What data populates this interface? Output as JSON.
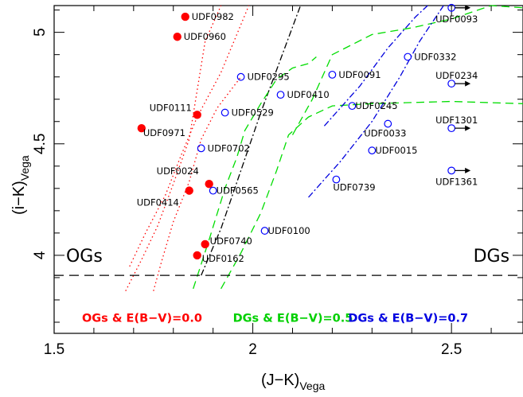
{
  "chart_data": {
    "type": "scatter",
    "xlabel": "(J−K)",
    "xlabel_sub": "Vega",
    "ylabel": "(i−K)",
    "ylabel_sub": "Vega",
    "xlim": [
      1.5,
      2.68
    ],
    "ylim": [
      3.65,
      5.12
    ],
    "x_ticks": [
      {
        "value": 1.5,
        "label": "1.5"
      },
      {
        "value": 2.0,
        "label": "2"
      },
      {
        "value": 2.5,
        "label": "2.5"
      }
    ],
    "y_ticks": [
      {
        "value": 4.0,
        "label": "4"
      },
      {
        "value": 4.5,
        "label": "4.5"
      },
      {
        "value": 5.0,
        "label": "5"
      }
    ],
    "region_labels": [
      {
        "text": "OGs",
        "x": 1.53,
        "y": 4.0
      },
      {
        "text": "DGs",
        "x": 2.555,
        "y": 4.0
      }
    ],
    "hline": {
      "y": 3.91,
      "style": "dashed",
      "color": "#000000"
    },
    "legend": [
      {
        "text": "OGs & E(B−V)=0.0",
        "color": "#ff0000",
        "x": 1.57,
        "y": 3.72
      },
      {
        "text": "DGs & E(B−V)=0.5",
        "color": "#00d000",
        "x": 1.95,
        "y": 3.72
      },
      {
        "text": "DGs & E(B−V)=0.7",
        "color": "#0000e0",
        "x": 2.24,
        "y": 3.72
      }
    ],
    "series": [
      {
        "name": "OGs",
        "marker": "filled-circle",
        "color": "#ff0000",
        "points": [
          {
            "x": 1.83,
            "y": 5.07,
            "label": "UDF0982"
          },
          {
            "x": 1.81,
            "y": 4.98,
            "label": "UDF0960"
          },
          {
            "x": 1.86,
            "y": 4.63,
            "label": "UDF0111"
          },
          {
            "x": 1.72,
            "y": 4.57,
            "label": "UDF0971"
          },
          {
            "x": 1.89,
            "y": 4.32,
            "label": "UDF0024"
          },
          {
            "x": 1.84,
            "y": 4.29,
            "label": "UDF0414"
          },
          {
            "x": 1.88,
            "y": 4.05,
            "label": "UDF0740"
          },
          {
            "x": 1.86,
            "y": 4.0,
            "label": "UDF0162"
          }
        ]
      },
      {
        "name": "DGs",
        "marker": "open-circle",
        "color": "#0000ff",
        "points": [
          {
            "x": 1.97,
            "y": 4.8,
            "label": "UDF0295"
          },
          {
            "x": 2.07,
            "y": 4.72,
            "label": "UDF0410"
          },
          {
            "x": 1.93,
            "y": 4.64,
            "label": "UDF0529"
          },
          {
            "x": 1.87,
            "y": 4.48,
            "label": "UDF0702"
          },
          {
            "x": 1.9,
            "y": 4.29,
            "label": "UDF0565"
          },
          {
            "x": 2.03,
            "y": 4.11,
            "label": "UDF0100"
          },
          {
            "x": 2.2,
            "y": 4.81,
            "label": "UDF0091"
          },
          {
            "x": 2.39,
            "y": 4.89,
            "label": "UDF0332"
          },
          {
            "x": 2.25,
            "y": 4.67,
            "label": "UDF0245"
          },
          {
            "x": 2.34,
            "y": 4.59,
            "label": "UDF0033"
          },
          {
            "x": 2.3,
            "y": 4.47,
            "label": "UDF0015"
          },
          {
            "x": 2.21,
            "y": 4.34,
            "label": "UDF0739"
          },
          {
            "x": 2.5,
            "y": 5.11,
            "label": "UDF0093",
            "arrow": true
          },
          {
            "x": 2.5,
            "y": 4.77,
            "label": "UDF0234",
            "arrow": true
          },
          {
            "x": 2.5,
            "y": 4.57,
            "label": "UDF1301",
            "arrow": true
          },
          {
            "x": 2.5,
            "y": 4.38,
            "label": "UDF1361",
            "arrow": true
          }
        ]
      }
    ],
    "tracks": [
      {
        "color": "#ff0000",
        "dash": "1.5,3.5",
        "points": [
          [
            1.68,
            3.84
          ],
          [
            1.72,
            3.98
          ],
          [
            1.76,
            4.13
          ],
          [
            1.8,
            4.32
          ],
          [
            1.84,
            4.52
          ],
          [
            1.86,
            4.74
          ],
          [
            1.88,
            4.96
          ],
          [
            1.92,
            5.2
          ]
        ]
      },
      {
        "color": "#ff0000",
        "dash": "1.5,3.5",
        "points": [
          [
            1.69,
            3.95
          ],
          [
            1.73,
            4.1
          ],
          [
            1.78,
            4.27
          ],
          [
            1.82,
            4.45
          ],
          [
            1.86,
            4.62
          ],
          [
            1.92,
            4.82
          ],
          [
            1.99,
            5.12
          ]
        ]
      },
      {
        "color": "#ff0000",
        "dash": "1.5,3.5",
        "points": [
          [
            1.75,
            3.84
          ],
          [
            1.77,
            3.97
          ],
          [
            1.8,
            4.15
          ],
          [
            1.84,
            4.33
          ],
          [
            1.87,
            4.52
          ],
          [
            1.91,
            4.66
          ],
          [
            1.97,
            4.8
          ]
        ]
      },
      {
        "color": "#000000",
        "dash": "8,3,2,3",
        "points": [
          [
            1.87,
            3.91
          ],
          [
            1.92,
            4.12
          ],
          [
            1.97,
            4.38
          ],
          [
            2.02,
            4.64
          ],
          [
            2.07,
            4.88
          ],
          [
            2.12,
            5.12
          ]
        ]
      },
      {
        "color": "#00dd00",
        "dash": "10,6",
        "points": [
          [
            1.85,
            3.85
          ],
          [
            1.89,
            4.07
          ],
          [
            1.93,
            4.3
          ],
          [
            1.96,
            4.44
          ],
          [
            1.98,
            4.56
          ],
          [
            2.02,
            4.68
          ],
          [
            2.06,
            4.79
          ],
          [
            2.1,
            4.84
          ],
          [
            2.14,
            4.86
          ],
          [
            2.16,
            4.89
          ]
        ]
      },
      {
        "color": "#00dd00",
        "dash": "10,6",
        "points": [
          [
            1.92,
            3.85
          ],
          [
            1.97,
            4.01
          ],
          [
            2.02,
            4.19
          ],
          [
            2.06,
            4.38
          ],
          [
            2.09,
            4.54
          ],
          [
            2.14,
            4.62
          ],
          [
            2.2,
            4.67
          ],
          [
            2.3,
            4.68
          ],
          [
            2.5,
            4.69
          ],
          [
            2.68,
            4.68
          ]
        ]
      },
      {
        "color": "#00dd00",
        "dash": "10,6",
        "points": [
          [
            2.1,
            4.54
          ],
          [
            2.15,
            4.7
          ],
          [
            2.2,
            4.9
          ],
          [
            2.3,
            4.99
          ],
          [
            2.4,
            5.02
          ],
          [
            2.5,
            5.06
          ],
          [
            2.6,
            5.12
          ],
          [
            2.7,
            5.11
          ]
        ]
      },
      {
        "color": "#0000dd",
        "dash": "8,3,2,3",
        "points": [
          [
            2.14,
            4.26
          ],
          [
            2.22,
            4.42
          ],
          [
            2.3,
            4.6
          ],
          [
            2.37,
            4.8
          ],
          [
            2.42,
            4.96
          ],
          [
            2.48,
            5.12
          ]
        ]
      },
      {
        "color": "#0000dd",
        "dash": "8,3,2,3",
        "points": [
          [
            2.18,
            4.58
          ],
          [
            2.27,
            4.76
          ],
          [
            2.34,
            4.93
          ],
          [
            2.41,
            5.07
          ],
          [
            2.44,
            5.12
          ]
        ]
      }
    ]
  }
}
